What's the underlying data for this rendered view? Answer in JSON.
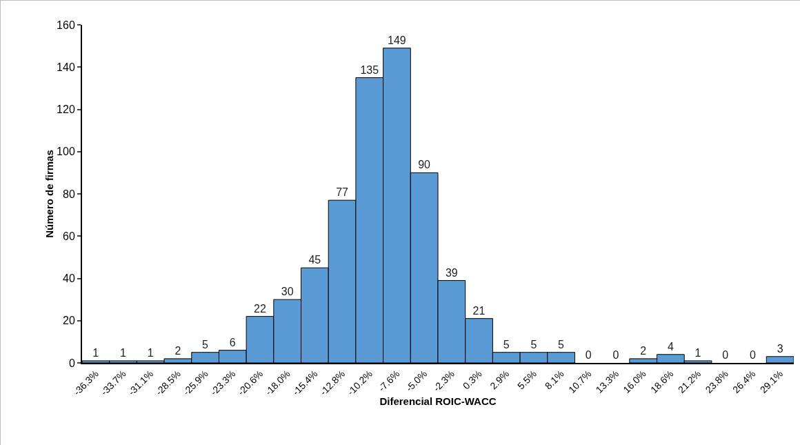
{
  "chart_data": {
    "type": "bar",
    "xlabel": "Diferencial ROIC-WACC",
    "ylabel": "Número de firmas",
    "categories": [
      "-36.3%",
      "-33.7%",
      "-31.1%",
      "-28.5%",
      "-25.9%",
      "-23.3%",
      "-20.6%",
      "-18.0%",
      "-15.4%",
      "-12.8%",
      "-10.2%",
      "-7.6%",
      "-5.0%",
      "-2.3%",
      "0.3%",
      "2.9%",
      "5.5%",
      "8.1%",
      "10.7%",
      "13.3%",
      "16.0%",
      "18.6%",
      "21.2%",
      "23.8%",
      "26.4%",
      "29.1%"
    ],
    "values": [
      1,
      1,
      1,
      2,
      5,
      6,
      22,
      30,
      45,
      77,
      135,
      149,
      90,
      39,
      21,
      5,
      5,
      5,
      0,
      0,
      2,
      4,
      1,
      0,
      0,
      3
    ],
    "color": "#5b9bd5",
    "ylim": [
      0,
      160
    ],
    "yticks": [
      0,
      20,
      40,
      60,
      80,
      100,
      120,
      140,
      160
    ],
    "grid": false,
    "legend": false,
    "data_labels": true
  }
}
